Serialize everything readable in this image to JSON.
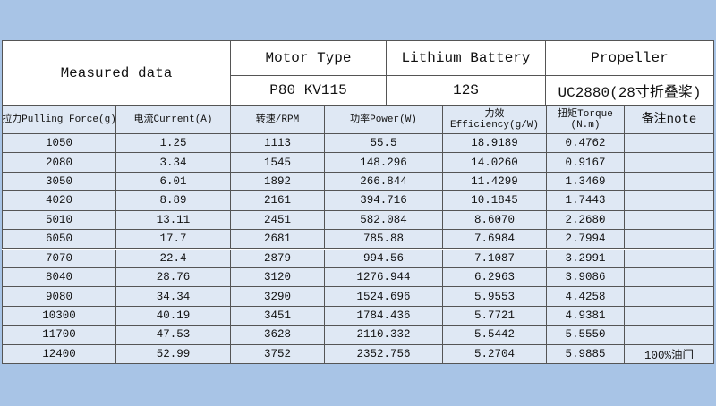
{
  "header": {
    "title": "Measured data",
    "specs": [
      {
        "label": "Motor Type",
        "value": "P80 KV115"
      },
      {
        "label": "Lithium Battery",
        "value": "12S"
      },
      {
        "label": "Propeller",
        "value": "UC2880(28寸折叠桨)"
      }
    ]
  },
  "table": {
    "columns": [
      [
        "拉力Pulling Force(g)"
      ],
      [
        "电流Current(A)"
      ],
      [
        "转速/RPM"
      ],
      [
        "功率Power(W)"
      ],
      [
        "力效",
        "Efficiency(g/W)"
      ],
      [
        "扭矩Torque",
        "(N.m)"
      ],
      [
        "备注note"
      ]
    ],
    "rows": [
      [
        "1050",
        "1.25",
        "1113",
        "55.5",
        "18.9189",
        "0.4762"
      ],
      [
        "2080",
        "3.34",
        "1545",
        "148.296",
        "14.0260",
        "0.9167"
      ],
      [
        "3050",
        "6.01",
        "1892",
        "266.844",
        "11.4299",
        "1.3469"
      ],
      [
        "4020",
        "8.89",
        "2161",
        "394.716",
        "10.1845",
        "1.7443"
      ],
      [
        "5010",
        "13.11",
        "2451",
        "582.084",
        "8.6070",
        "2.2680"
      ],
      [
        "6050",
        "17.7",
        "2681",
        "785.88",
        "7.6984",
        "2.7994"
      ],
      [
        "7070",
        "22.4",
        "2879",
        "994.56",
        "7.1087",
        "3.2991"
      ],
      [
        "8040",
        "28.76",
        "3120",
        "1276.944",
        "6.2963",
        "3.9086"
      ],
      [
        "9080",
        "34.34",
        "3290",
        "1524.696",
        "5.9553",
        "4.4258"
      ],
      [
        "10300",
        "40.19",
        "3451",
        "1784.436",
        "5.7721",
        "4.9381"
      ],
      [
        "11700",
        "47.53",
        "3628",
        "2110.332",
        "5.5442",
        "5.5550"
      ],
      [
        "12400",
        "52.99",
        "3752",
        "2352.756",
        "5.2704",
        "5.9885",
        "100%油门"
      ]
    ]
  }
}
